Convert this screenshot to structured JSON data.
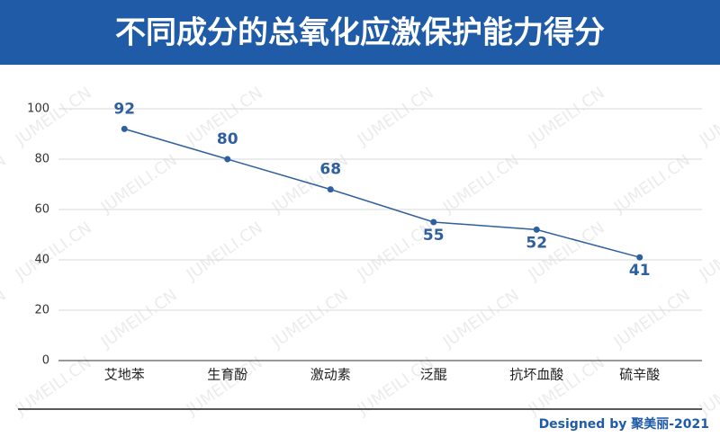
{
  "chart_data": {
    "type": "line",
    "title": "不同成分的总氧化应激保护能力得分",
    "categories": [
      "艾地苯",
      "生育酚",
      "激动素",
      "泛醌",
      "抗坏血酸",
      "硫辛酸"
    ],
    "values": [
      92,
      80,
      68,
      55,
      52,
      41
    ],
    "color": "#2e5f9e",
    "ylim": [
      0,
      100
    ],
    "yticks": [
      0,
      20,
      40,
      60,
      80,
      100
    ],
    "grid": true,
    "footer": "Designed by 聚美丽-2021",
    "watermark": "JUMEILI.CN"
  }
}
